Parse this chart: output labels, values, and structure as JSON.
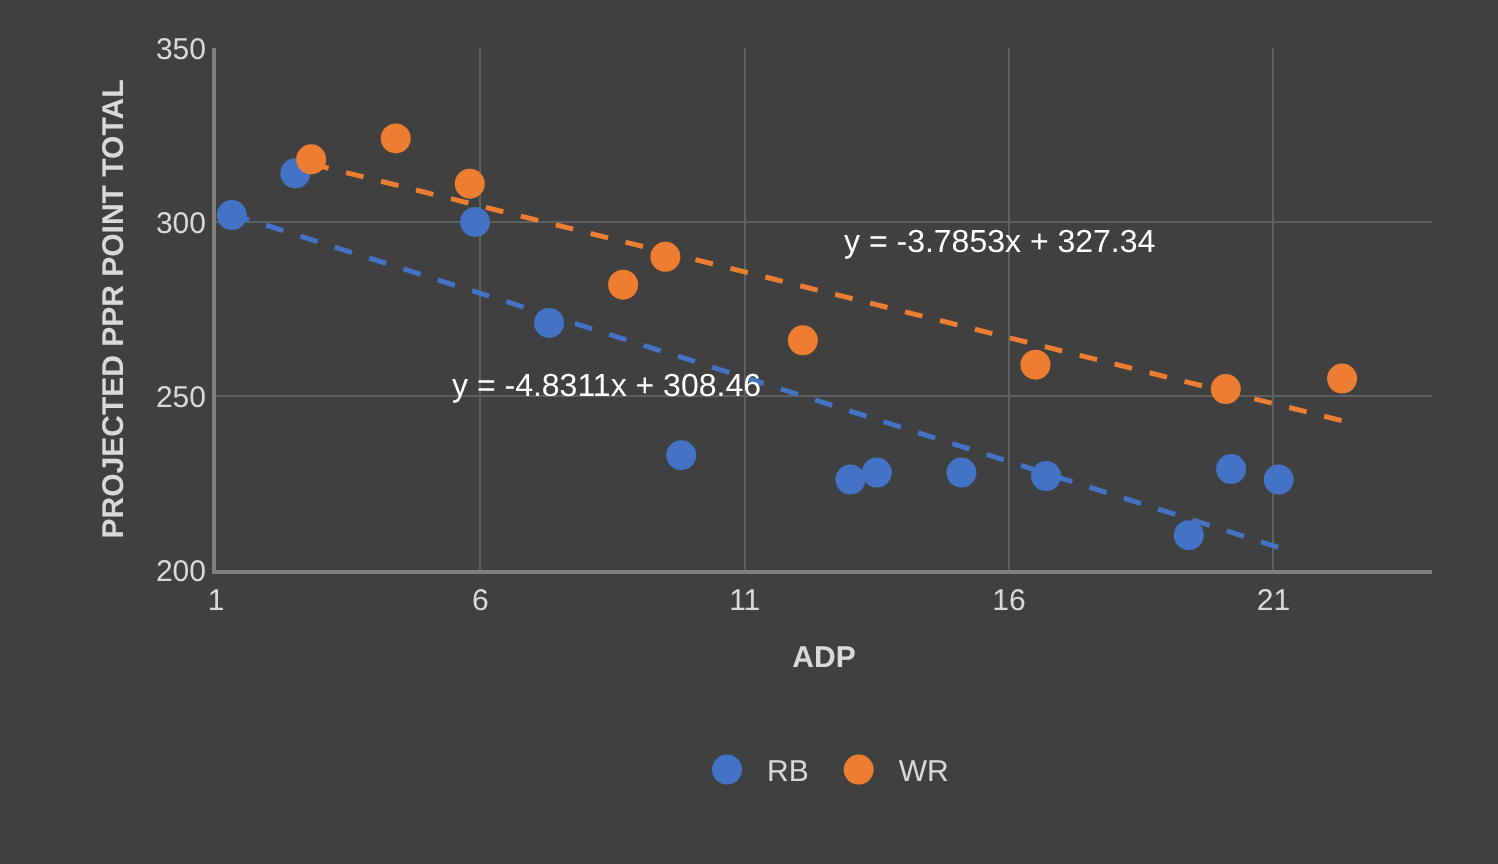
{
  "chart_data": {
    "type": "scatter",
    "xlabel": "ADP",
    "ylabel": "PROJECTED PPR POINT TOTAL",
    "xlim": [
      1,
      24
    ],
    "xticks": [
      1,
      6,
      11,
      16,
      21
    ],
    "ylim": [
      200,
      350
    ],
    "yticks": [
      200,
      250,
      300,
      350
    ],
    "grid": true,
    "legend": "bottom",
    "marker": "circle",
    "series": [
      {
        "name": "RB",
        "color": "#4472c4",
        "x": [
          1.3,
          2.5,
          5.9,
          7.3,
          9.8,
          13.0,
          13.5,
          15.1,
          16.7,
          19.4,
          20.2,
          21.1
        ],
        "values": [
          302,
          314,
          300,
          271,
          233,
          226,
          228,
          228,
          227,
          210,
          229,
          226
        ]
      },
      {
        "name": "WR",
        "color": "#ed7d31",
        "x": [
          2.8,
          4.4,
          5.8,
          8.7,
          9.5,
          12.1,
          16.5,
          20.1,
          22.3
        ],
        "values": [
          318,
          324,
          311,
          282,
          290,
          266,
          259,
          252,
          255
        ]
      },
      {
        "type": "line",
        "line_style": "dashed",
        "marker": "none",
        "color": "#4472c4",
        "x": [
          1.3,
          21.1
        ],
        "values": [
          302.2,
          206.5
        ]
      },
      {
        "type": "line",
        "line_style": "dashed",
        "marker": "none",
        "color": "#ed7d31",
        "x": [
          2.8,
          22.3
        ],
        "values": [
          316.7,
          242.9
        ]
      }
    ],
    "annotations": [
      "y = -4.8311x + 308.46",
      "y = -3.7853x + 327.34"
    ]
  }
}
